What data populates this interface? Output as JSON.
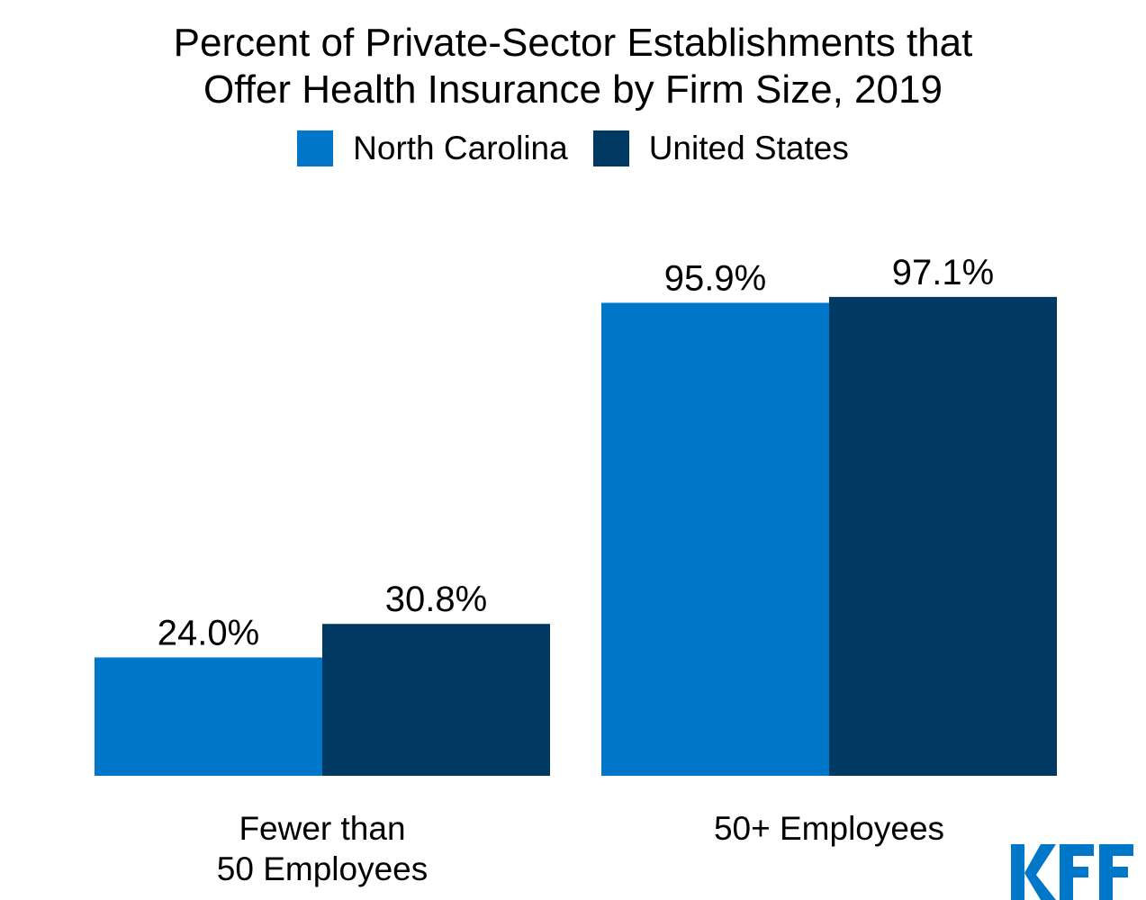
{
  "chart_data": {
    "type": "bar",
    "title": "Percent of Private-Sector Establishments that Offer Health Insurance by Firm Size, 2019",
    "title_lines": [
      "Percent of Private-Sector Establishments that",
      "Offer Health Insurance by Firm Size, 2019"
    ],
    "categories": [
      "Fewer than 50 Employees",
      "50+ Employees"
    ],
    "category_lines": [
      [
        "Fewer than",
        "50 Employees"
      ],
      [
        "50+ Employees"
      ]
    ],
    "series": [
      {
        "name": "North Carolina",
        "values": [
          24.0,
          95.9
        ],
        "labels": [
          "24.0%",
          "95.9%"
        ],
        "color": "#0077c8"
      },
      {
        "name": "United States",
        "values": [
          30.8,
          97.1
        ],
        "labels": [
          "30.8%",
          "97.1%"
        ],
        "color": "#003a63"
      }
    ],
    "ylim": [
      0,
      100
    ],
    "grid": false,
    "legend_position": "top"
  },
  "logo": {
    "text": "KFF",
    "color": "#0077c8"
  }
}
